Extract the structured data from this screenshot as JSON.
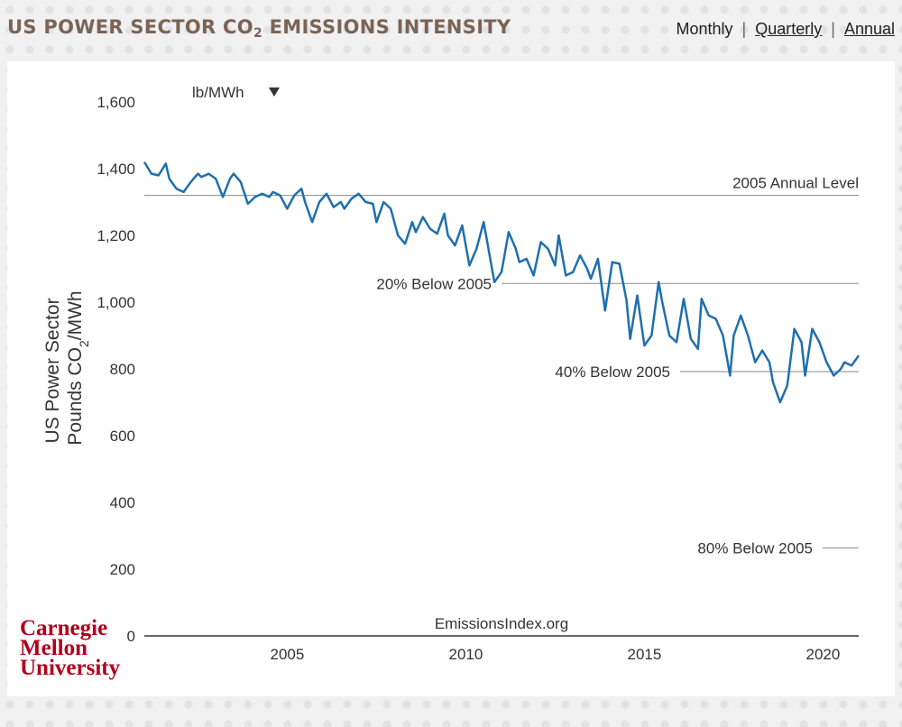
{
  "header": {
    "title_prefix": "US POWER SECTOR CO",
    "title_sub": "2",
    "title_suffix": " EMISSIONS INTENSITY"
  },
  "period_nav": {
    "options": [
      "Monthly",
      "Quarterly",
      "Annual"
    ],
    "selected": "Monthly"
  },
  "logo": {
    "lines": [
      "Carnegie",
      "Mellon",
      "University"
    ]
  },
  "chart_data": {
    "type": "line",
    "title": "US Power Sector CO2 Emissions Intensity",
    "unit_selector": "lb/MWh",
    "unit_selector_icon": "triangle-down-icon",
    "ylabel_line1": "US Power Sector",
    "ylabel_line2_prefix": "Pounds CO",
    "ylabel_line2_sub": "2",
    "ylabel_line2_suffix": "/MWh",
    "ylim": [
      0,
      1600
    ],
    "xlim": [
      2001.0,
      2021.0
    ],
    "yticks": [
      0,
      200,
      400,
      600,
      800,
      1000,
      1200,
      1400,
      1600
    ],
    "ytick_labels": [
      "0",
      "200",
      "400",
      "600",
      "800",
      "1,000",
      "1,200",
      "1,400",
      "1,600"
    ],
    "xticks": [
      2005,
      2010,
      2015,
      2020
    ],
    "xtick_labels": [
      "2005",
      "2010",
      "2015",
      "2020"
    ],
    "watermark": "EmissionsIndex.org",
    "color": "#1f6fad",
    "reference_lines": [
      {
        "label": "2005 Annual Level",
        "value": 1320
      },
      {
        "label": "20% Below 2005",
        "value": 1056
      },
      {
        "label": "40% Below 2005",
        "value": 792
      },
      {
        "label": "80% Below 2005",
        "value": 264
      }
    ],
    "series": [
      {
        "name": "Monthly CO2 intensity (lb/MWh)",
        "x": [
          2001.0,
          2001.2,
          2001.4,
          2001.6,
          2001.7,
          2001.9,
          2002.1,
          2002.3,
          2002.5,
          2002.6,
          2002.8,
          2003.0,
          2003.2,
          2003.4,
          2003.5,
          2003.7,
          2003.9,
          2004.1,
          2004.3,
          2004.5,
          2004.6,
          2004.8,
          2005.0,
          2005.2,
          2005.4,
          2005.5,
          2005.7,
          2005.9,
          2006.1,
          2006.3,
          2006.5,
          2006.6,
          2006.8,
          2007.0,
          2007.2,
          2007.4,
          2007.5,
          2007.7,
          2007.9,
          2008.1,
          2008.3,
          2008.5,
          2008.6,
          2008.8,
          2009.0,
          2009.2,
          2009.4,
          2009.5,
          2009.7,
          2009.9,
          2010.1,
          2010.3,
          2010.5,
          2010.6,
          2010.8,
          2011.0,
          2011.2,
          2011.4,
          2011.5,
          2011.7,
          2011.9,
          2012.1,
          2012.3,
          2012.5,
          2012.6,
          2012.8,
          2013.0,
          2013.2,
          2013.4,
          2013.5,
          2013.7,
          2013.9,
          2014.1,
          2014.3,
          2014.5,
          2014.6,
          2014.8,
          2015.0,
          2015.2,
          2015.4,
          2015.5,
          2015.7,
          2015.9,
          2016.1,
          2016.3,
          2016.5,
          2016.6,
          2016.8,
          2017.0,
          2017.2,
          2017.4,
          2017.5,
          2017.7,
          2017.9,
          2018.1,
          2018.3,
          2018.5,
          2018.6,
          2018.8,
          2019.0,
          2019.2,
          2019.4,
          2019.5,
          2019.7,
          2019.9,
          2020.1,
          2020.3,
          2020.5,
          2020.6,
          2020.8,
          2021.0
        ],
        "values": [
          1420,
          1385,
          1380,
          1415,
          1370,
          1340,
          1330,
          1360,
          1385,
          1375,
          1385,
          1370,
          1315,
          1370,
          1385,
          1360,
          1295,
          1315,
          1325,
          1315,
          1330,
          1320,
          1280,
          1320,
          1340,
          1300,
          1240,
          1300,
          1325,
          1285,
          1300,
          1280,
          1310,
          1325,
          1300,
          1295,
          1240,
          1300,
          1280,
          1200,
          1175,
          1240,
          1210,
          1255,
          1220,
          1205,
          1265,
          1200,
          1170,
          1230,
          1110,
          1160,
          1240,
          1180,
          1060,
          1090,
          1210,
          1160,
          1120,
          1130,
          1080,
          1180,
          1160,
          1110,
          1200,
          1080,
          1090,
          1140,
          1100,
          1070,
          1130,
          975,
          1120,
          1115,
          1005,
          890,
          1020,
          870,
          900,
          1060,
          1000,
          900,
          880,
          1010,
          890,
          860,
          1010,
          960,
          950,
          900,
          780,
          900,
          960,
          900,
          820,
          855,
          820,
          760,
          700,
          750,
          920,
          880,
          780,
          920,
          880,
          820,
          780,
          800,
          820,
          810,
          840
        ]
      }
    ]
  }
}
